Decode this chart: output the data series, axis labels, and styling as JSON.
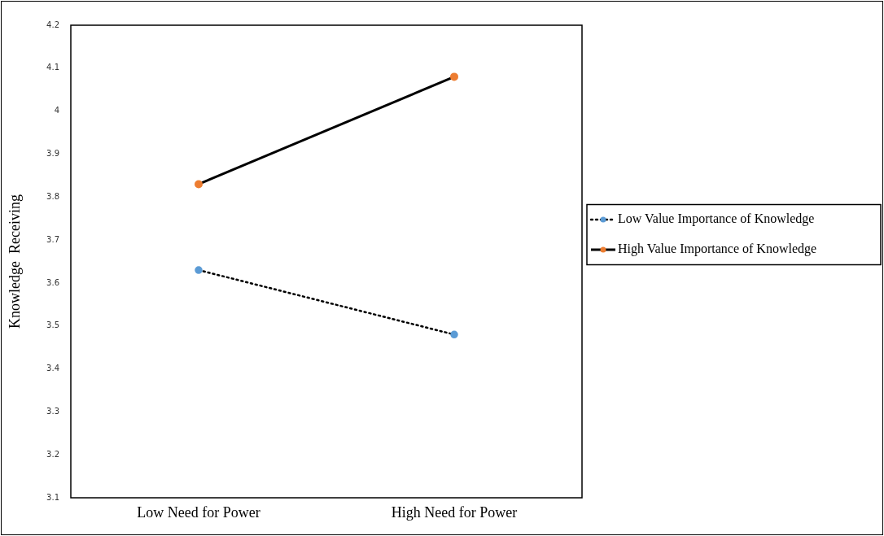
{
  "chart_data": {
    "type": "line",
    "ylabel": "Knowledge  Receiving",
    "categories": [
      "Low Need for Power",
      "High Need for Power"
    ],
    "series": [
      {
        "name": "Low Value Importance of Knowledge",
        "color": "#000000",
        "colors": [
          "#5b9bd5",
          "#5b9bd5"
        ],
        "line_style": "dotted",
        "values": [
          3.63,
          3.48
        ]
      },
      {
        "name": "High Value Importance of Knowledge",
        "color": "#000000",
        "colors": [
          "#ed7d31",
          "#ed7d31"
        ],
        "line_style": "solid",
        "values": [
          3.83,
          4.08
        ]
      }
    ],
    "ylim": [
      3.1,
      4.2
    ],
    "yticks": [
      3.1,
      3.2,
      3.3,
      3.4,
      3.5,
      3.6,
      3.7,
      3.8,
      3.9,
      4,
      4.1,
      4.2
    ],
    "grid": false,
    "legend": "right",
    "marker": "circle"
  }
}
